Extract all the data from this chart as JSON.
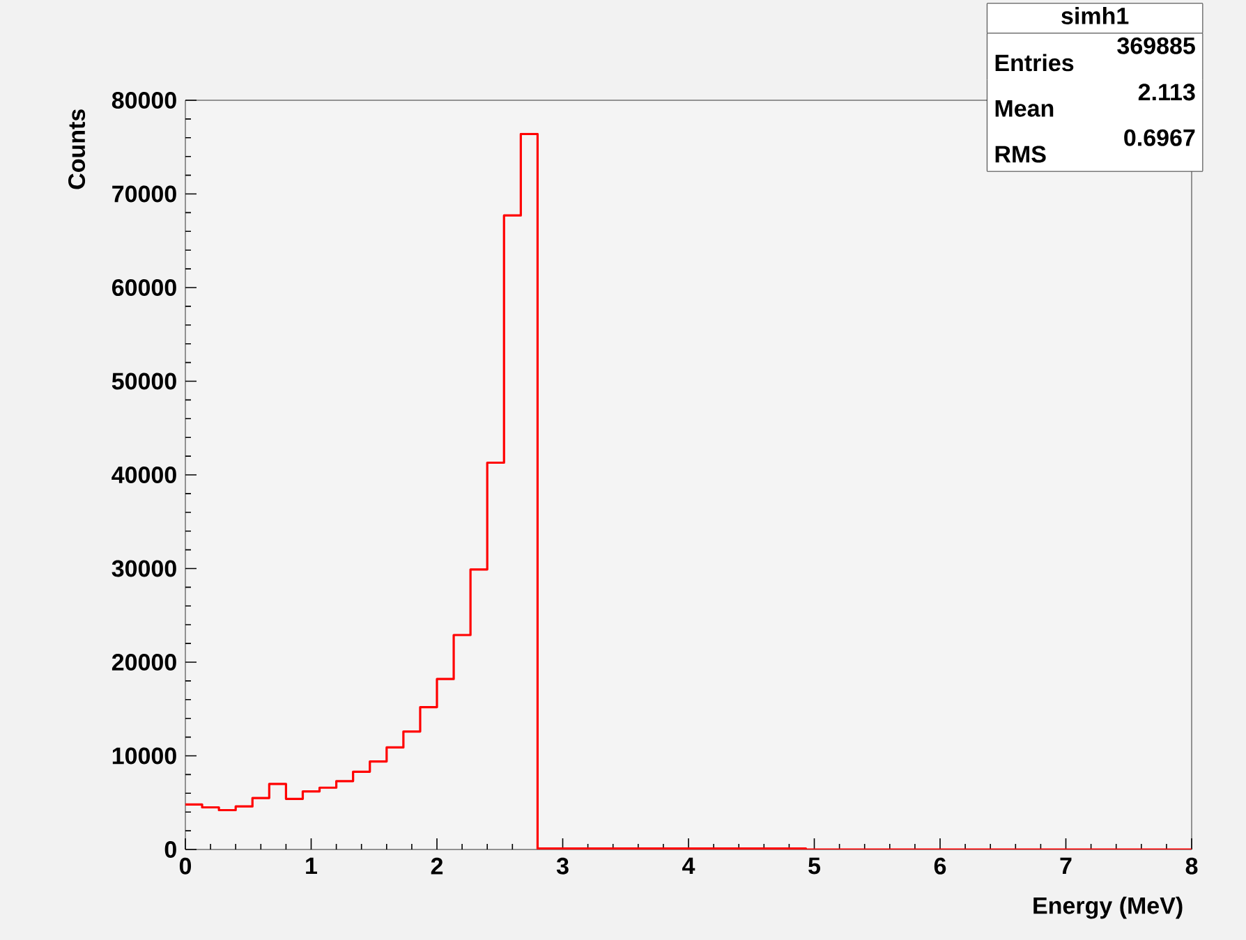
{
  "chart_data": {
    "type": "histogram",
    "xlabel": "Energy (MeV)",
    "ylabel": "Counts",
    "annotations": [
      "simh1",
      "Entries",
      "369885",
      "Mean",
      "2.113",
      "RMS",
      "0.6967"
    ],
    "bins": [
      0,
      0.1333,
      0.2667,
      0.4,
      0.5333,
      0.6667,
      0.8,
      0.9333,
      1.0667,
      1.2,
      1.3333,
      1.4667,
      1.6,
      1.7333,
      1.8667,
      2,
      2.1333,
      2.2667,
      2.4,
      2.5333,
      2.6667,
      2.8,
      2.9333,
      3.0667,
      3.2,
      3.3333,
      3.4667,
      3.6,
      3.7333,
      3.8667,
      4,
      4.1333,
      4.2667,
      4.4,
      4.5333,
      4.6667,
      4.8,
      4.9333,
      5.0667,
      5.2,
      5.3333,
      5.4667,
      5.6,
      5.7333,
      5.8667,
      6,
      6.1333,
      6.2667,
      6.4,
      6.5333,
      6.6667,
      6.8,
      6.9333,
      7.0667,
      7.2,
      7.3333,
      7.4667,
      7.6,
      7.7333,
      7.8667,
      8
    ],
    "values": [
      4800,
      4500,
      4200,
      4600,
      5500,
      7000,
      5400,
      6200,
      6600,
      7300,
      8300,
      9400,
      10900,
      12600,
      15200,
      18200,
      22900,
      29900,
      41300,
      67700,
      76400,
      100,
      100,
      100,
      100,
      100,
      100,
      100,
      100,
      100,
      100,
      100,
      100,
      100,
      100,
      100,
      100,
      0,
      0,
      0,
      0,
      0,
      0,
      0,
      0,
      0,
      0,
      0,
      0,
      0,
      0,
      0,
      0,
      0,
      0,
      0,
      0,
      0,
      0,
      0
    ],
    "color": "#ff0000",
    "xlim": [
      0,
      8
    ],
    "ylim": [
      0,
      80000
    ],
    "xticks": [
      0,
      1,
      2,
      3,
      4,
      5,
      6,
      7,
      8
    ],
    "yticks": [
      0,
      10000,
      20000,
      30000,
      40000,
      50000,
      60000,
      70000,
      80000
    ]
  }
}
